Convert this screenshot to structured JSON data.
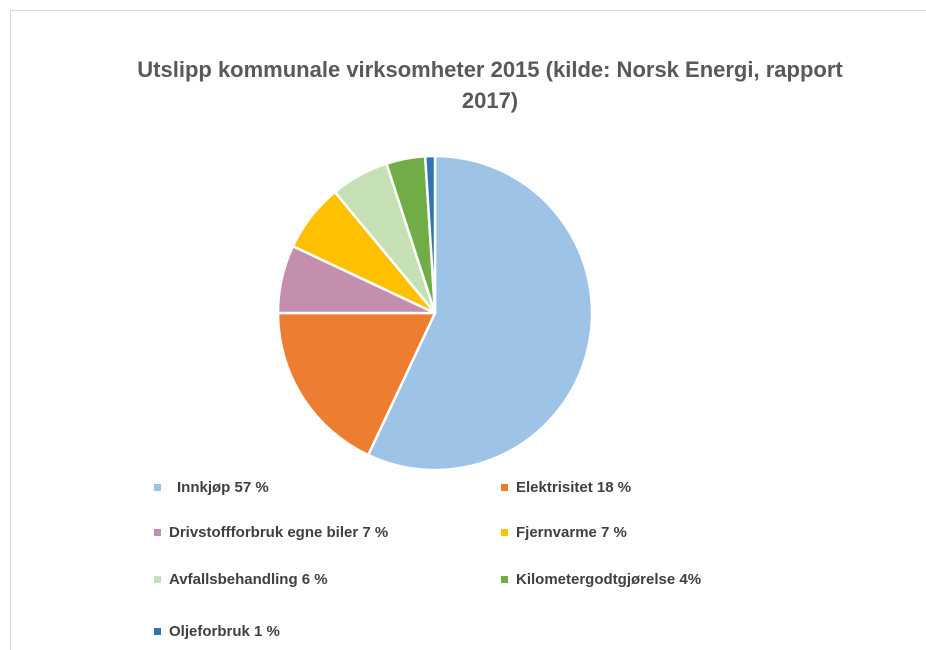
{
  "chart_data": {
    "type": "pie",
    "title": "Utslipp kommunale virksomheter 2015 (kilde: Norsk Energi, rapport 2017)",
    "categories": [
      "Innkjøp 57 %",
      "Elektrisitet 18 %",
      "Drivstoffforbruk egne biler 7 %",
      "Fjernvarme 7 %",
      "Avfallsbehandling 6 %",
      "Kilometergodtgjørelse 4%",
      "Oljeforbruk 1 %"
    ],
    "values": [
      57,
      18,
      7,
      7,
      6,
      4,
      1
    ],
    "colors": [
      "#9dc3e6",
      "#ed7d31",
      "#c48fae",
      "#ffc000",
      "#c5e0b4",
      "#70ad47",
      "#2e75b6"
    ],
    "legend": "bottom"
  }
}
